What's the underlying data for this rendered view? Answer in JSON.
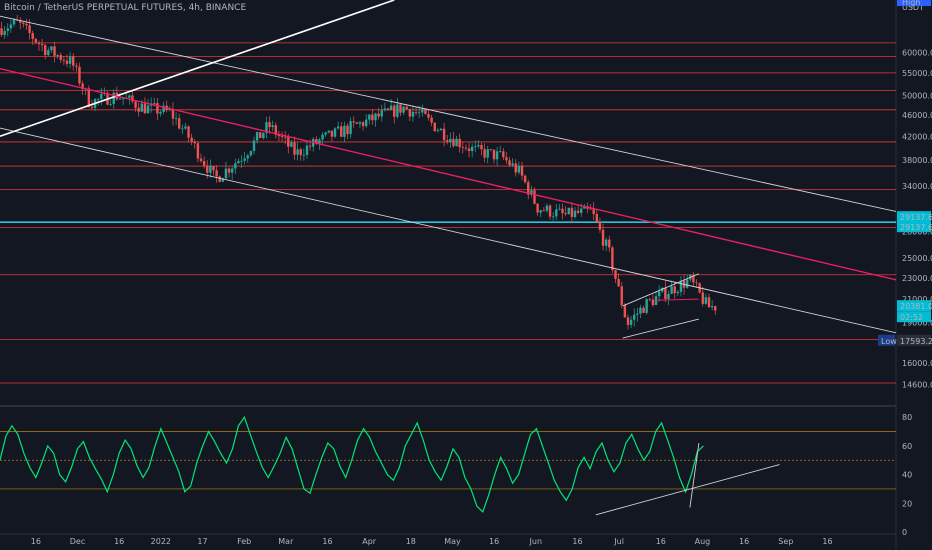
{
  "header": {
    "title": "Bitcoin / TetherUS PERPETUAL FUTURES, 4h, BINANCE",
    "currency": "USDT",
    "high_tag": "High"
  },
  "colors": {
    "background": "#131722",
    "candle_up": "#26a69a",
    "candle_down": "#ef5350",
    "horizontal_levels": "#e53935",
    "cyan_level": "#26c6da",
    "channel": "#d1d4dc",
    "pink_trend": "#e91e63",
    "rsi_line": "#00e676",
    "rsi_bands": "#b8860b"
  },
  "chart_data": [
    {
      "type": "candlestick",
      "y_scale": "log",
      "ylim": [
        13500,
        75000
      ],
      "y_ticks": [
        60000,
        55000,
        50000,
        46000,
        42000,
        38000,
        34000,
        28000,
        25000,
        23000,
        21000,
        19000,
        16000,
        14600
      ],
      "x_ticks": [
        "16",
        "Dec",
        "16",
        "2022",
        "17",
        "Feb",
        "Mar",
        "16",
        "Apr",
        "18",
        "May",
        "16",
        "Jun",
        "16",
        "Jul",
        "16",
        "Aug",
        "16",
        "Sep",
        "16"
      ],
      "price_path": [
        [
          0,
          66500
        ],
        [
          0.02,
          68000
        ],
        [
          0.05,
          61000
        ],
        [
          0.08,
          57500
        ],
        [
          0.1,
          48500
        ],
        [
          0.13,
          50000
        ],
        [
          0.16,
          47500
        ],
        [
          0.19,
          46500
        ],
        [
          0.21,
          42000
        ],
        [
          0.24,
          35000
        ],
        [
          0.27,
          38500
        ],
        [
          0.3,
          44000
        ],
        [
          0.33,
          39000
        ],
        [
          0.36,
          41500
        ],
        [
          0.39,
          43500
        ],
        [
          0.42,
          45500
        ],
        [
          0.45,
          47500
        ],
        [
          0.47,
          46000
        ],
        [
          0.5,
          42000
        ],
        [
          0.53,
          39500
        ],
        [
          0.56,
          38500
        ],
        [
          0.58,
          36000
        ],
        [
          0.6,
          31000
        ],
        [
          0.63,
          30000
        ],
        [
          0.66,
          30500
        ],
        [
          0.68,
          25500
        ],
        [
          0.7,
          18900
        ],
        [
          0.72,
          20500
        ],
        [
          0.74,
          21500
        ],
        [
          0.77,
          22800
        ],
        [
          0.79,
          20300
        ],
        [
          0.8,
          20381
        ]
      ],
      "horizontal_levels": [
        62500,
        59000,
        55000,
        51000,
        47000,
        41000,
        37000,
        33500,
        28500,
        23300,
        17700,
        14700
      ],
      "cyan_level": 29137.6,
      "price_labels": [
        "29137.6",
        "29137.6",
        "20381.0",
        "02:52",
        "Low",
        "17593.2"
      ],
      "last_price": 20381.0,
      "period_low": 17593.2
    },
    {
      "type": "line",
      "name": "RSI",
      "ylim": [
        0,
        85
      ],
      "y_ticks": [
        80,
        60,
        40,
        20,
        0
      ],
      "bands": [
        70,
        50,
        30
      ],
      "values": [
        50,
        67,
        74,
        68,
        55,
        45,
        38,
        48,
        60,
        55,
        40,
        35,
        45,
        58,
        63,
        52,
        44,
        37,
        28,
        40,
        55,
        64,
        58,
        46,
        38,
        45,
        60,
        72,
        62,
        52,
        42,
        28,
        32,
        48,
        60,
        70,
        63,
        55,
        48,
        58,
        74,
        80,
        68,
        56,
        45,
        38,
        46,
        55,
        66,
        58,
        44,
        30,
        27,
        40,
        52,
        62,
        58,
        46,
        38,
        50,
        64,
        72,
        66,
        56,
        48,
        40,
        36,
        45,
        60,
        68,
        76,
        64,
        50,
        42,
        36,
        46,
        58,
        52,
        38,
        30,
        18,
        14,
        26,
        40,
        52,
        44,
        34,
        40,
        54,
        68,
        72,
        60,
        48,
        36,
        28,
        22,
        30,
        45,
        52,
        44,
        56,
        62,
        50,
        42,
        48,
        62,
        68,
        58,
        50,
        56,
        70,
        76,
        64,
        52,
        38,
        28,
        40,
        56,
        60
      ]
    }
  ]
}
